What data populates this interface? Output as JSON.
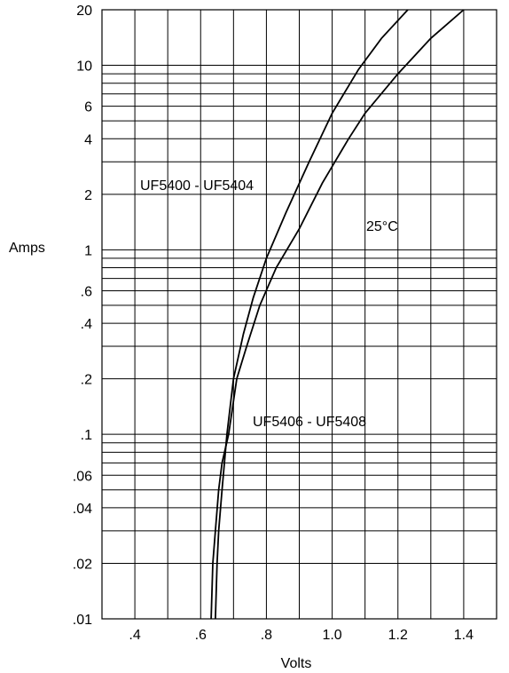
{
  "chart_data": {
    "type": "line",
    "title": "",
    "xlabel": "Volts",
    "ylabel": "Amps",
    "xlim": [
      0.3,
      1.5
    ],
    "ylim": [
      0.01,
      20
    ],
    "yscale": "log",
    "grid": true,
    "x_ticks": [
      0.4,
      0.6,
      0.8,
      1.0,
      1.2,
      1.4
    ],
    "x_tick_labels": [
      ".4",
      ".6",
      ".8",
      "1.0",
      "1.2",
      "1.4"
    ],
    "y_tick_values": [
      0.01,
      0.02,
      0.04,
      0.06,
      0.1,
      0.2,
      0.4,
      0.6,
      1,
      2,
      4,
      6,
      10,
      20
    ],
    "y_tick_labels": [
      ".01",
      ".02",
      ".04",
      ".06",
      ".1",
      ".2",
      ".4",
      ".6",
      "1",
      "2",
      "4",
      "6",
      "10",
      "20"
    ],
    "annotations": [
      "UF5400 - UF5404",
      "UF5406 - UF5408",
      "25°C"
    ],
    "series": [
      {
        "x": [
          0.645,
          0.65,
          0.655,
          0.665,
          0.68,
          0.7,
          0.73,
          0.76,
          0.8,
          0.86,
          0.93,
          1.0,
          1.08,
          1.15,
          1.23
        ],
        "values": [
          0.01,
          0.02,
          0.03,
          0.05,
          0.1,
          0.2,
          0.35,
          0.55,
          0.9,
          1.6,
          3.0,
          5.5,
          9.5,
          14,
          20
        ]
      },
      {
        "x": [
          0.632,
          0.637,
          0.645,
          0.655,
          0.665,
          0.685,
          0.71,
          0.74,
          0.78,
          0.83,
          0.9,
          0.97,
          1.05,
          1.1,
          1.2,
          1.3,
          1.4
        ],
        "values": [
          0.01,
          0.02,
          0.03,
          0.05,
          0.07,
          0.1,
          0.2,
          0.3,
          0.5,
          0.8,
          1.3,
          2.3,
          4.0,
          5.5,
          9.0,
          14,
          20
        ]
      }
    ]
  }
}
